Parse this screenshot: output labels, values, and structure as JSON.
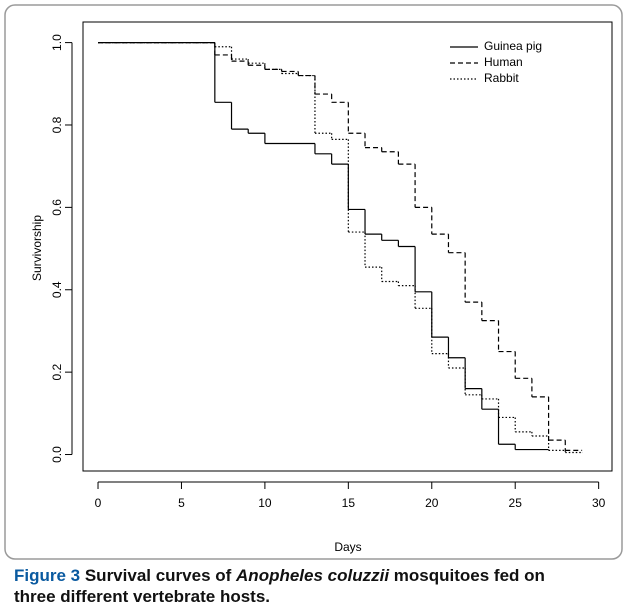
{
  "chart_data": {
    "type": "step",
    "xlabel": "Days",
    "ylabel": "Survivorship",
    "xlim": [
      -0.9,
      30.8
    ],
    "ylim": [
      -0.04,
      1.05
    ],
    "xticks": [
      0,
      5,
      10,
      15,
      20,
      25,
      30
    ],
    "yticks": [
      {
        "value": 0,
        "label": "0.0"
      },
      0.2,
      0.4,
      0.6,
      0.8,
      {
        "value": 1,
        "label": "1.0"
      }
    ],
    "legend": "top-right",
    "series": [
      {
        "name": "Guinea pig",
        "color": "#000000",
        "dash": "solid",
        "x": [
          0,
          7,
          8,
          9,
          10,
          13,
          14,
          15,
          16,
          17,
          18,
          19,
          20,
          21,
          22,
          23,
          24,
          25,
          27
        ],
        "values": [
          1,
          0.855,
          0.79,
          0.78,
          0.755,
          0.73,
          0.705,
          0.595,
          0.535,
          0.52,
          0.505,
          0.395,
          0.285,
          0.235,
          0.16,
          0.11,
          0.025,
          0.012,
          0.012
        ]
      },
      {
        "name": "Human",
        "color": "#000000",
        "dash": "dashed",
        "x": [
          0,
          7,
          8,
          9,
          10,
          11,
          12,
          13,
          14,
          15,
          16,
          17,
          18,
          19,
          20,
          21,
          22,
          23,
          24,
          25,
          26,
          27,
          28,
          29
        ],
        "values": [
          1,
          0.97,
          0.955,
          0.945,
          0.935,
          0.93,
          0.92,
          0.875,
          0.855,
          0.78,
          0.745,
          0.735,
          0.705,
          0.6,
          0.535,
          0.49,
          0.37,
          0.325,
          0.25,
          0.185,
          0.14,
          0.035,
          0.01,
          0.01
        ]
      },
      {
        "name": "Rabbit",
        "color": "#000000",
        "dash": "dotted",
        "x": [
          0,
          7,
          8,
          9,
          10,
          11,
          12,
          13,
          14,
          15,
          16,
          17,
          18,
          19,
          20,
          21,
          22,
          23,
          24,
          25,
          26,
          27,
          28,
          29
        ],
        "values": [
          1,
          0.99,
          0.96,
          0.95,
          0.935,
          0.925,
          0.92,
          0.78,
          0.765,
          0.54,
          0.455,
          0.42,
          0.41,
          0.355,
          0.245,
          0.21,
          0.145,
          0.135,
          0.09,
          0.055,
          0.045,
          0.01,
          0.005,
          0.005
        ]
      }
    ]
  },
  "caption": {
    "label": "Figure 3",
    "text_1": " Survival curves of ",
    "species": "Anopheles coluzzii",
    "text_2": " mosquitoes fed on three different vertebrate hosts."
  }
}
